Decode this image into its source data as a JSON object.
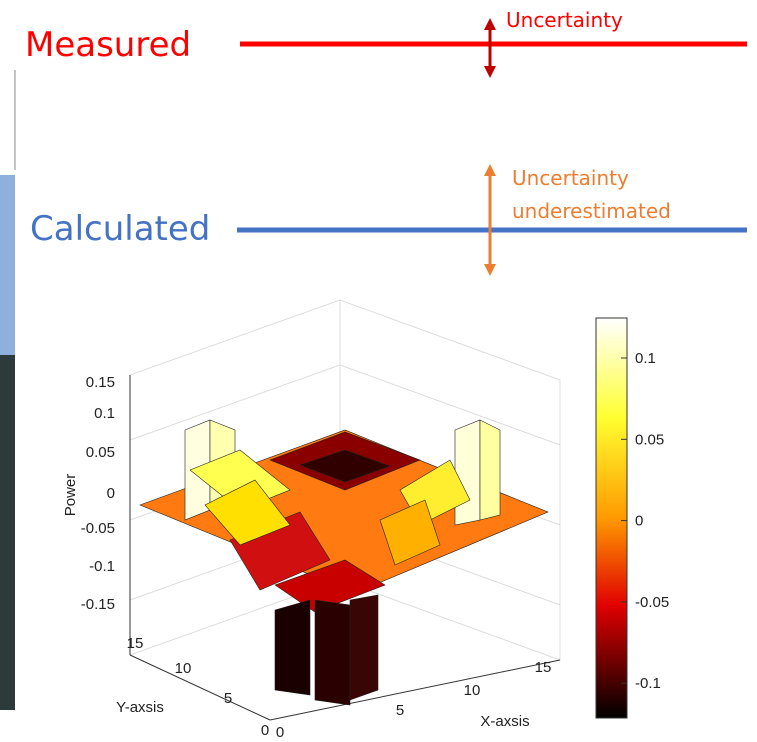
{
  "measured": {
    "label": "Measured",
    "annotation": "Uncertainty"
  },
  "calculated": {
    "label": "Calculated",
    "annotation": [
      "Uncertainty",
      "underestimated"
    ]
  },
  "plot": {
    "z_label": "Power",
    "x_label": "X-axsis",
    "y_label": "Y-axsis",
    "zticks": [
      "0.15",
      "0.1",
      "0.05",
      "0",
      "-0.05",
      "-0.1",
      "-0.15"
    ],
    "xticks": [
      "0",
      "5",
      "10",
      "15"
    ],
    "yticks": [
      "0",
      "5",
      "10",
      "15"
    ],
    "colorbar_ticks": [
      "0.1",
      "0.05",
      "0",
      "-0.05",
      "-0.1"
    ]
  }
}
